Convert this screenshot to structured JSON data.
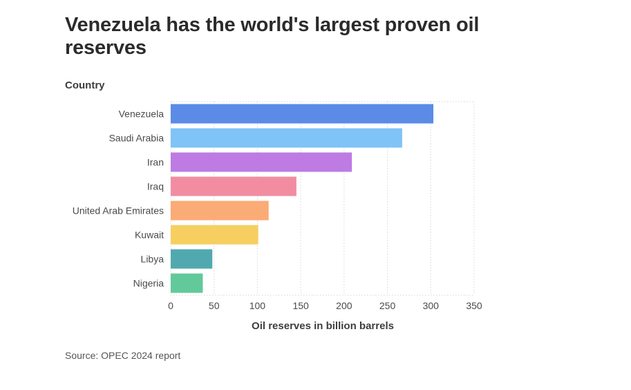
{
  "chart_data": {
    "type": "bar",
    "orientation": "horizontal",
    "title": "Venezuela has the world's largest proven oil reserves",
    "ylabel": "Country",
    "xlabel": "Oil reserves in billion barrels",
    "categories": [
      "Venezuela",
      "Saudi Arabia",
      "Iran",
      "Iraq",
      "United Arab Emirates",
      "Kuwait",
      "Libya",
      "Nigeria"
    ],
    "values": [
      303,
      267,
      209,
      145,
      113,
      101,
      48,
      37
    ],
    "colors": [
      "#5b8be6",
      "#7fc3f7",
      "#bd7be3",
      "#f28da1",
      "#fbab75",
      "#f7cf60",
      "#51a9b0",
      "#62c99b"
    ],
    "xlim": [
      0,
      350
    ],
    "xticks": [
      0,
      50,
      100,
      150,
      200,
      250,
      300,
      350
    ],
    "tick_labels": [
      "0",
      "50",
      "100",
      "150",
      "200",
      "250",
      "300",
      "350"
    ],
    "grid": true,
    "source": "Source: OPEC 2024 report"
  }
}
